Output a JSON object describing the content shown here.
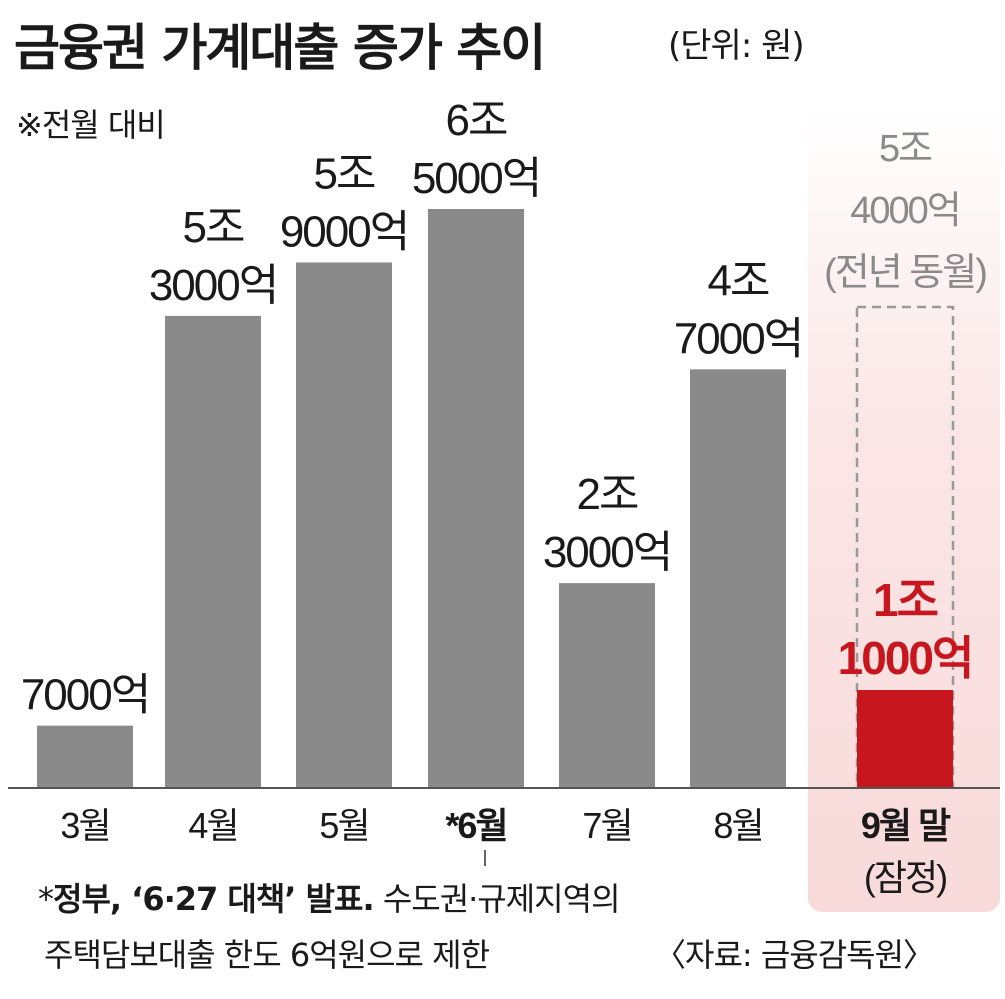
{
  "header": {
    "title": "금융권 가계대출 증가 추이",
    "unit": "(단위: 원)",
    "note": "※전월 대비"
  },
  "colors": {
    "bar": "#8a8a8a",
    "highlight_bar": "#c8161e",
    "highlight_text": "#c8161e",
    "reference_text": "#8a8a8a",
    "dashed_outline": "#999999",
    "axis": "#555555"
  },
  "chart_data": {
    "type": "bar",
    "title": "금융권 가계대출 증가 추이",
    "categories": [
      "3월",
      "4월",
      "5월",
      "*6월",
      "7월",
      "8월",
      "9월 말"
    ],
    "category_sublabels": [
      "",
      "",
      "",
      "",
      "",
      "",
      "(잠정)"
    ],
    "bold_categories": [
      "*6월",
      "9월 말"
    ],
    "values": [
      7000,
      53000,
      59000,
      65000,
      23000,
      47000,
      11000
    ],
    "value_unit": "억 원",
    "data_labels": [
      [
        "7000억"
      ],
      [
        "5조",
        "3000억"
      ],
      [
        "5조",
        "9000억"
      ],
      [
        "6조",
        "5000억"
      ],
      [
        "2조",
        "3000억"
      ],
      [
        "4조",
        "7000억"
      ],
      [
        "1조",
        "1000억"
      ]
    ],
    "highlight_index": 6,
    "reference": {
      "category": "9월 말",
      "value": 54000,
      "labels": [
        "5조",
        "4000억",
        "(전년 동월)"
      ]
    },
    "ylim": [
      0,
      70000
    ],
    "grid": false,
    "legend": "none"
  },
  "footnote": {
    "line1_mark": "*",
    "line1_bold": "정부, ‘6·27 대책’ 발표.",
    "line1_rest": " 수도권·규제지역의",
    "line2": "주택담보대출 한도 6억원으로 제한"
  },
  "source": "〈자료: 금융감독원〉"
}
